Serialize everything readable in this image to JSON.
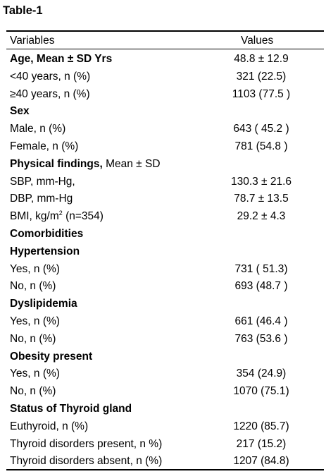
{
  "caption": "Table-1",
  "headers": {
    "variables": "Variables",
    "values": "Values"
  },
  "rows": [
    {
      "bold_label": "Age, Mean ± SD Yrs",
      "label": "",
      "value": "48.8 ± 12.9"
    },
    {
      "bold_label": "",
      "label": "<40 years, n (%)",
      "value": "321 (22.5)"
    },
    {
      "bold_label": "",
      "label": "≥40 years, n (%)",
      "value": "1103 (77.5 )"
    },
    {
      "bold_label": "Sex",
      "label": "",
      "value": ""
    },
    {
      "bold_label": "",
      "label": "Male, n (%)",
      "value": "643 ( 45.2 )"
    },
    {
      "bold_label": "",
      "label": "Female, n (%)",
      "value": "781 (54.8 )"
    },
    {
      "bold_label": "Physical findings,",
      "label": " Mean ± SD",
      "value": ""
    },
    {
      "bold_label": "",
      "label": "SBP, mm-Hg,",
      "value": "130.3 ± 21.6"
    },
    {
      "bold_label": "",
      "label": "DBP, mm-Hg",
      "value": "78.7 ± 13.5"
    },
    {
      "bold_label": "",
      "label": "BMI, kg/m",
      "sup": "2",
      "label_after": " (n=354)",
      "value": "29.2 ± 4.3"
    },
    {
      "bold_label": "Comorbidities",
      "label": "",
      "value": ""
    },
    {
      "bold_label": "Hypertension",
      "label": "",
      "value": ""
    },
    {
      "bold_label": "",
      "label": "Yes, n (%)",
      "value": "731 ( 51.3)"
    },
    {
      "bold_label": "",
      "label": "No, n (%)",
      "value": "693 (48.7 )"
    },
    {
      "bold_label": "Dyslipidemia",
      "label": "",
      "value": ""
    },
    {
      "bold_label": "",
      "label": "Yes, n (%)",
      "value": "661 (46.4 )"
    },
    {
      "bold_label": "",
      "label": "No, n (%)",
      "value": "763 (53.6 )"
    },
    {
      "bold_label": "Obesity present",
      "label": "",
      "value": ""
    },
    {
      "bold_label": "",
      "label": "Yes, n (%)",
      "value": "354 (24.9)"
    },
    {
      "bold_label": "",
      "label": "No, n (%)",
      "value": "1070 (75.1)"
    },
    {
      "bold_label": "Status of Thyroid gland",
      "label": "",
      "value": ""
    },
    {
      "bold_label": "",
      "label": "Euthyroid, n (%)",
      "value": "1220 (85.7)"
    },
    {
      "bold_label": "",
      "label": "Thyroid disorders present, n %)",
      "value": "217 (15.2)"
    },
    {
      "bold_label": "",
      "label": "Thyroid disorders absent, n (%)",
      "value": "1207 (84.8)"
    }
  ]
}
